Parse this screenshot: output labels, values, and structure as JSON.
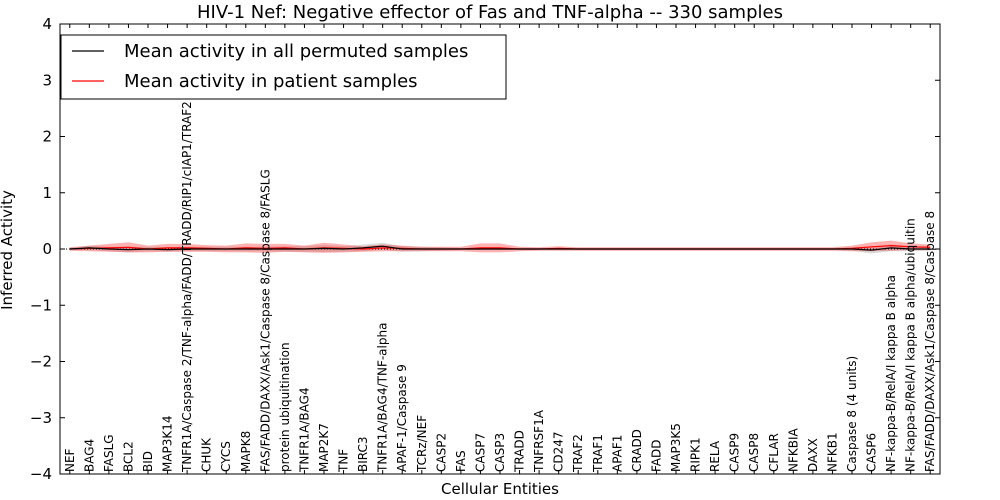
{
  "chart_data": {
    "type": "line",
    "title": "HIV-1 Nef: Negative effector of Fas and TNF-alpha -- 330 samples",
    "xlabel": "Cellular Entities",
    "ylabel": "Inferred Activity",
    "ylim": [
      -4,
      4
    ],
    "yticks": [
      "−4",
      "−3",
      "−2",
      "−1",
      "0",
      "1",
      "2",
      "3",
      "4"
    ],
    "categories": [
      "NEF",
      "BAG4",
      "FASLG",
      "BCL2",
      "BID",
      "MAP3K14",
      "TNFR1A/Caspase 2/TNF-alpha/FADD/TRADD/RIP1/cIAP1/TRAF2",
      "CHUK",
      "CYCS",
      "MAPK8",
      "FAS/FADD/DAXX/Ask1/Caspase 8/Caspase 8/FASLG",
      "protein ubiquitination",
      "TNFR1A/BAG4",
      "MAP2K7",
      "TNF",
      "BIRC3",
      "TNFR1A/BAG4/TNF-alpha",
      "APAF-1/Caspase 9",
      "TCRz/NEF",
      "CASP2",
      "FAS",
      "CASP7",
      "CASP3",
      "TRADD",
      "TNFRSF1A",
      "CD247",
      "TRAF2",
      "TRAF1",
      "APAF1",
      "CRADD",
      "FADD",
      "MAP3K5",
      "RIPK1",
      "RELA",
      "CASP9",
      "CASP8",
      "CFLAR",
      "NFKBIA",
      "DAXX",
      "NFKB1",
      "Caspase 8 (4 units)",
      "CASP6",
      "NF-kappa-B/RelA/I kappa B alpha",
      "NF-kappa-B/RelA/I kappa B alpha/ubiquitin",
      "FAS/FADD/DAXX/Ask1/Caspase 8/Caspase 8"
    ],
    "series": [
      {
        "name": "Mean activity in all permuted samples",
        "color": "#000000",
        "values": [
          0,
          0.02,
          0,
          -0.01,
          0,
          -0.01,
          0,
          0,
          0,
          0,
          0,
          0,
          0,
          0.01,
          0,
          0.02,
          0.05,
          0,
          0,
          0,
          0,
          0,
          0,
          0,
          0,
          0,
          0,
          0,
          0,
          0,
          0,
          0,
          0,
          0,
          0,
          0,
          0,
          0,
          0,
          0,
          0,
          -0.02,
          0.02,
          0,
          0
        ],
        "band": [
          0.02,
          0.04,
          0.04,
          0.05,
          0.04,
          0.04,
          0.04,
          0.04,
          0.04,
          0.04,
          0.04,
          0.05,
          0.05,
          0.06,
          0.05,
          0.06,
          0.06,
          0.05,
          0.04,
          0.03,
          0.02,
          0.02,
          0.02,
          0.02,
          0.02,
          0.02,
          0.02,
          0.02,
          0.02,
          0.02,
          0.02,
          0.02,
          0.02,
          0.02,
          0.02,
          0.02,
          0.02,
          0.02,
          0.02,
          0.02,
          0.03,
          0.06,
          0.06,
          0.04,
          0.03
        ]
      },
      {
        "name": "Mean activity in patient samples",
        "color": "#ff0000",
        "values": [
          0,
          0.01,
          0.02,
          0.03,
          0,
          0.02,
          0.02,
          0.01,
          0,
          0.02,
          0.01,
          0.02,
          0,
          0.02,
          0.01,
          0,
          0.02,
          0.01,
          0,
          0,
          0,
          0.02,
          0.02,
          0,
          0,
          0.01,
          0,
          0,
          0,
          0,
          0,
          0,
          0,
          0,
          0,
          0,
          0,
          0,
          0,
          0,
          0.01,
          0.04,
          0.06,
          0.04,
          0.03
        ],
        "band": [
          0.03,
          0.05,
          0.07,
          0.09,
          0.06,
          0.07,
          0.07,
          0.06,
          0.06,
          0.08,
          0.08,
          0.07,
          0.06,
          0.09,
          0.07,
          0.05,
          0.06,
          0.05,
          0.04,
          0.04,
          0.04,
          0.08,
          0.08,
          0.04,
          0.03,
          0.04,
          0.03,
          0.03,
          0.03,
          0.03,
          0.03,
          0.03,
          0.03,
          0.03,
          0.03,
          0.03,
          0.03,
          0.03,
          0.03,
          0.03,
          0.05,
          0.08,
          0.09,
          0.06,
          0.05
        ]
      }
    ],
    "legend": {
      "position": "top-left",
      "entries": [
        "Mean activity in all permuted samples",
        "Mean activity in patient samples"
      ]
    },
    "colors": {
      "permuted_band": "#b0b0b0",
      "patient_band": "#ff0000",
      "zero_line": "#000000"
    }
  }
}
